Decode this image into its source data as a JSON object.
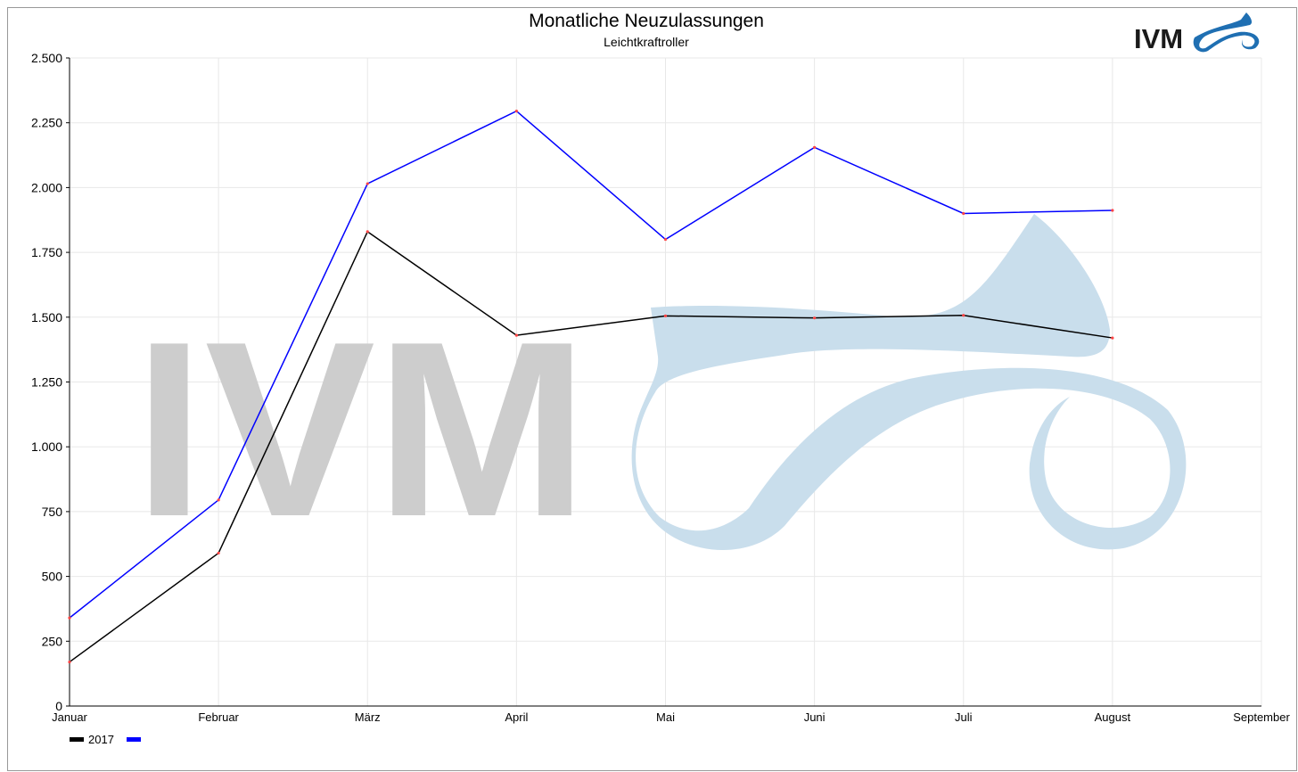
{
  "chart_data": {
    "type": "line",
    "title": "Monatliche Neuzulassungen",
    "subtitle": "Leichtkraftroller",
    "logo_text": "IVM",
    "watermark_text": "IVM",
    "categories": [
      "Januar",
      "Februar",
      "März",
      "April",
      "Mai",
      "Juni",
      "Juli",
      "August",
      "September"
    ],
    "series": [
      {
        "name": "2017",
        "color": "#000000",
        "values": [
          170,
          590,
          1830,
          1430,
          1505,
          1497,
          1507,
          1420,
          null
        ]
      },
      {
        "color": "#0000ff",
        "values": [
          340,
          795,
          2015,
          2295,
          1800,
          2155,
          1900,
          1912,
          null
        ]
      }
    ],
    "marker_color": "#ff4444",
    "ylim": [
      0,
      2500
    ],
    "yticks": [
      0,
      250,
      500,
      750,
      {
        "value": 1000,
        "label": "1.000"
      },
      {
        "value": 1250,
        "label": "1.250"
      },
      {
        "value": 1500,
        "label": "1.500"
      },
      {
        "value": 1750,
        "label": "1.750"
      },
      {
        "value": 2000,
        "label": "2.000"
      },
      {
        "value": 2250,
        "label": "2.250"
      },
      {
        "value": 2500,
        "label": "2.500"
      }
    ],
    "grid": true,
    "legend": "bottom-left"
  }
}
